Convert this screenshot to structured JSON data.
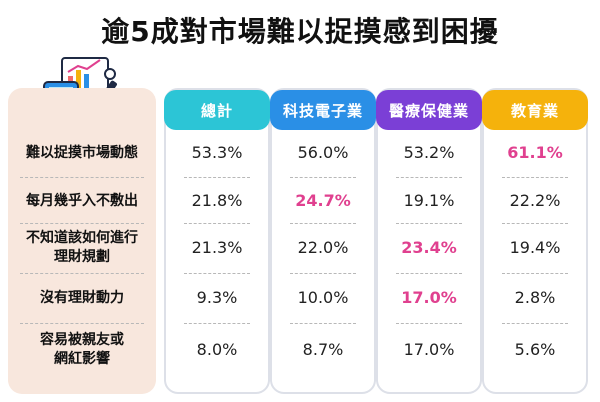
{
  "title": "逾5成對市場難以捉摸感到困擾",
  "colors": {
    "panel_bg": "#f8e7dd",
    "highlight": "#e0408f",
    "header_total": "#2cc5d6",
    "header_tech": "#2a8fe6",
    "header_medical": "#7b3fd6",
    "header_education": "#f5b20c"
  },
  "icons": [
    "calculator-icon",
    "chart-icon",
    "pen-icon"
  ],
  "chart_data": {
    "type": "table",
    "columns": [
      "總計",
      "科技電子業",
      "醫療保健業",
      "教育業"
    ],
    "rows": [
      {
        "label_lines": [
          "難以捉摸市場動態"
        ],
        "values": [
          "53.3%",
          "56.0%",
          "53.2%",
          "61.1%"
        ],
        "highlight": [
          false,
          false,
          false,
          true
        ]
      },
      {
        "label_lines": [
          "每月幾乎入不敷出"
        ],
        "values": [
          "21.8%",
          "24.7%",
          "19.1%",
          "22.2%"
        ],
        "highlight": [
          false,
          true,
          false,
          false
        ]
      },
      {
        "label_lines": [
          "不知道該如何進行",
          "理財規劃"
        ],
        "values": [
          "21.3%",
          "22.0%",
          "23.4%",
          "19.4%"
        ],
        "highlight": [
          false,
          false,
          true,
          false
        ]
      },
      {
        "label_lines": [
          "沒有理財動力"
        ],
        "values": [
          "9.3%",
          "10.0%",
          "17.0%",
          "2.8%"
        ],
        "highlight": [
          false,
          false,
          true,
          false
        ]
      },
      {
        "label_lines": [
          "容易被親友或",
          "網紅影響"
        ],
        "values": [
          "8.0%",
          "8.7%",
          "17.0%",
          "5.6%"
        ],
        "highlight": [
          false,
          false,
          false,
          false
        ]
      }
    ]
  }
}
